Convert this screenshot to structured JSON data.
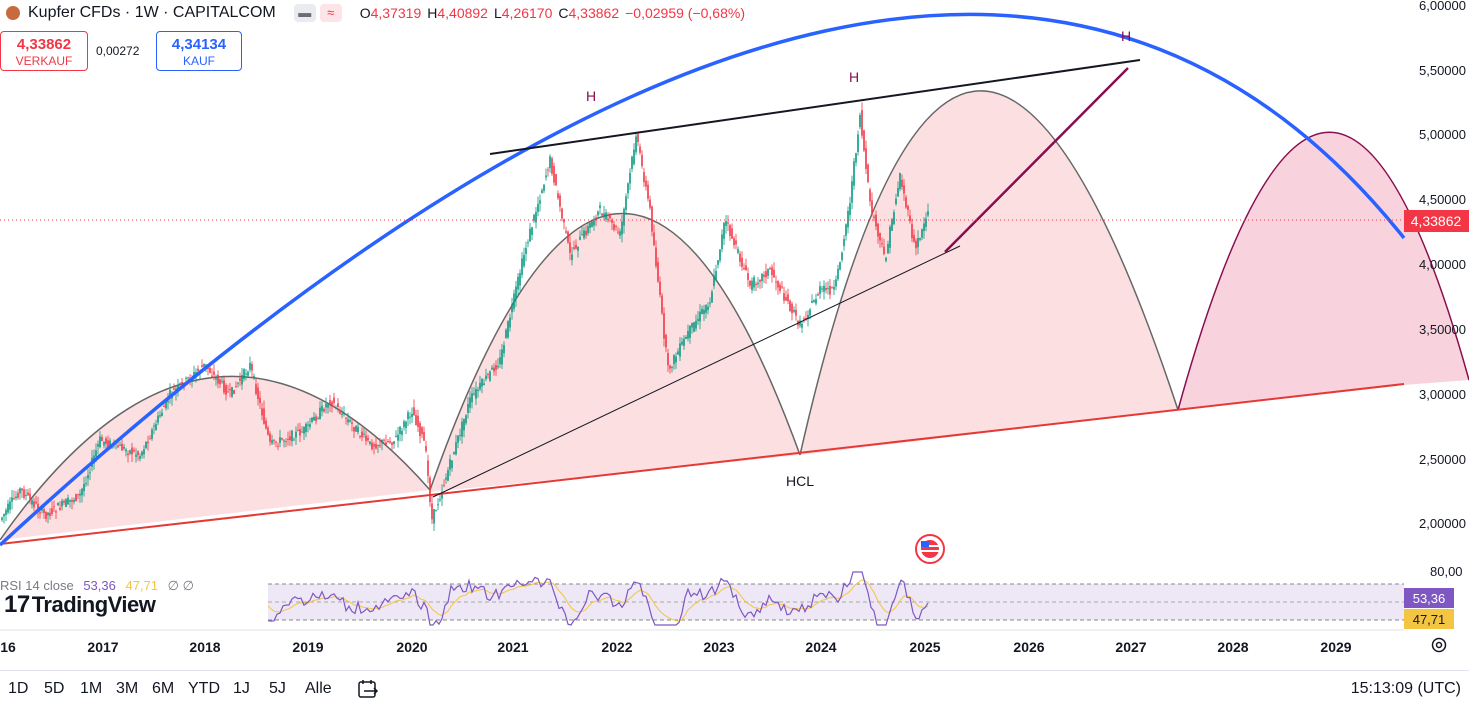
{
  "header": {
    "title": "Kupfer CFDs · 1W · CAPITALCOM",
    "ohlc": [
      {
        "k": "O",
        "v": "4,37319"
      },
      {
        "k": "H",
        "v": "4,40892"
      },
      {
        "k": "L",
        "v": "4,26170"
      },
      {
        "k": "C",
        "v": "4,33862"
      },
      {
        "k": "",
        "v": "−0,02959 (−0,68%)"
      }
    ],
    "sell_price": "4,33862",
    "sell_label": "VERKAUF",
    "spread": "0,00272",
    "buy_price": "4,34134",
    "buy_label": "KAUF"
  },
  "price_axis": {
    "labels": [
      "6,00000",
      "5,50000",
      "5,00000",
      "4,50000",
      "4,00000",
      "3,50000",
      "3,00000",
      "2,50000",
      "2,00000"
    ],
    "current_price": "4,33862",
    "current_color": "#f23645"
  },
  "time_axis": {
    "labels": [
      "16",
      "2017",
      "2018",
      "2019",
      "2020",
      "2021",
      "2022",
      "2023",
      "2024",
      "2025",
      "2026",
      "2027",
      "2028",
      "2029"
    ]
  },
  "annotations": {
    "h1": "H",
    "h2": "H",
    "h3": "H",
    "hcl": "HCL"
  },
  "rsi": {
    "label": "RSI 14 close",
    "rsi_value": "53,36",
    "ma_value": "47,71",
    "axis_top": "80,00",
    "rsi_color": "#7e57c2",
    "ma_color": "#f4c542"
  },
  "logo": "TradingView",
  "toolbar": {
    "ranges": [
      "1D",
      "5D",
      "1M",
      "3M",
      "6M",
      "YTD",
      "1J",
      "5J",
      "Alle"
    ],
    "clock": "15:13:09 (UTC)"
  },
  "colors": {
    "arc": "#2962ff",
    "support": "#e53935",
    "neckline": "#131722",
    "projection": "#880e4f",
    "fill": "#fbd5d8",
    "up": "#089981",
    "down": "#f23645"
  },
  "icons": [
    "flag-us-icon",
    "gear-icon",
    "calendar-goto-icon",
    "symbol-icon"
  ]
}
